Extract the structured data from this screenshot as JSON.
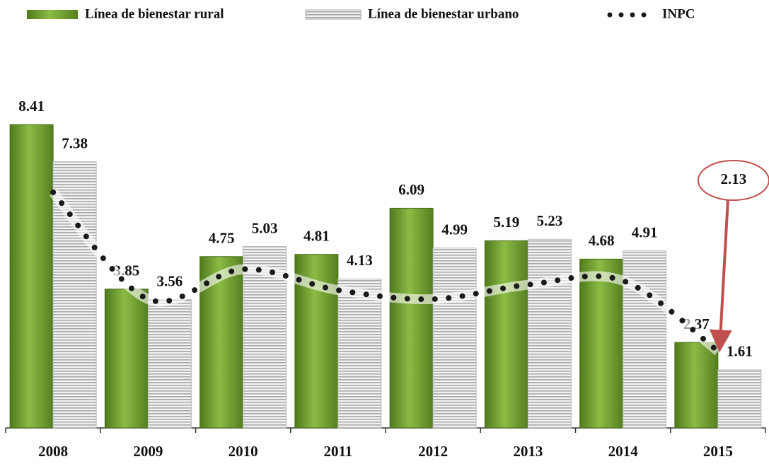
{
  "chart_data": {
    "type": "bar",
    "categories": [
      "2008",
      "2009",
      "2010",
      "2011",
      "2012",
      "2013",
      "2014",
      "2015"
    ],
    "series": [
      {
        "name": "Línea de bienestar rural",
        "color": "#6b9a2e",
        "values": [
          8.41,
          3.85,
          4.75,
          4.81,
          6.09,
          5.19,
          4.68,
          2.37
        ]
      },
      {
        "name": "Línea de bienestar urbano",
        "color": "#c8c8c8",
        "values": [
          7.38,
          3.56,
          5.03,
          4.13,
          4.99,
          5.23,
          4.91,
          1.61
        ]
      },
      {
        "name": "INPC",
        "color": "#1a1a1a",
        "type": "line",
        "values": [
          6.53,
          3.57,
          4.4,
          3.82,
          3.57,
          3.97,
          4.08,
          2.13
        ]
      }
    ]
  }
}
